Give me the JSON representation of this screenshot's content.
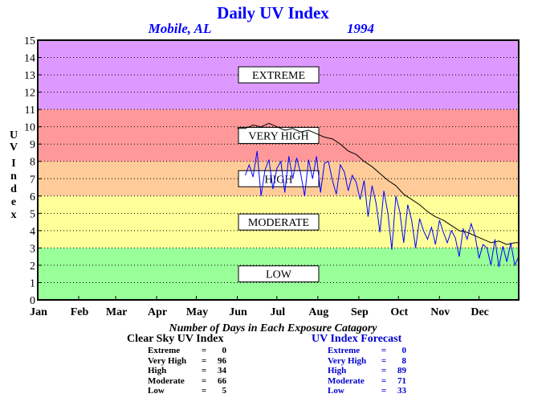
{
  "chart_data": {
    "type": "line",
    "title": "Daily UV Index",
    "location": "Mobile, AL",
    "year": "1994",
    "ylabel": "UV Index",
    "ylim": [
      0,
      15
    ],
    "yticks": [
      "0",
      "1",
      "2",
      "3",
      "4",
      "5",
      "6",
      "7",
      "8",
      "9",
      "10",
      "11",
      "12",
      "13",
      "14",
      "15"
    ],
    "months": [
      "Jan",
      "Feb",
      "Mar",
      "Apr",
      "May",
      "Jun",
      "Jul",
      "Aug",
      "Sep",
      "Oct",
      "Nov",
      "Dec"
    ],
    "xlim_day": [
      1,
      365
    ],
    "grid": true,
    "bands": [
      {
        "label": "LOW",
        "from": 0,
        "to": 3,
        "color": "#99ff99"
      },
      {
        "label": "MODERATE",
        "from": 3,
        "to": 6,
        "color": "#ffff99"
      },
      {
        "label": "HIGH",
        "from": 6,
        "to": 8,
        "color": "#ffcc99"
      },
      {
        "label": "VERY HIGH",
        "from": 8,
        "to": 11,
        "color": "#ff9999"
      },
      {
        "label": "EXTREME",
        "from": 11,
        "to": 15,
        "color": "#dd99ff"
      }
    ],
    "series": [
      {
        "name": "Clear Sky UV Index",
        "color": "#000000",
        "day": [
          152,
          158,
          164,
          170,
          176,
          182,
          188,
          194,
          200,
          206,
          212,
          218,
          224,
          230,
          236,
          242,
          248,
          254,
          260,
          266,
          272,
          278,
          284,
          290,
          296,
          302,
          308,
          314,
          320,
          326,
          332,
          338,
          344,
          350,
          356,
          362,
          365
        ],
        "uv": [
          9.9,
          9.9,
          10.1,
          10.0,
          10.2,
          10.0,
          9.8,
          9.9,
          9.7,
          9.8,
          9.6,
          9.4,
          9.3,
          9.0,
          8.6,
          8.4,
          8.0,
          7.7,
          7.3,
          6.9,
          6.6,
          6.1,
          5.8,
          5.5,
          5.1,
          4.8,
          4.6,
          4.3,
          4.0,
          3.9,
          3.7,
          3.5,
          3.3,
          3.4,
          3.2,
          3.3,
          3.3
        ]
      },
      {
        "name": "UV Index Forecast",
        "color": "#0000ff",
        "day": [
          158,
          161,
          164,
          167,
          170,
          173,
          176,
          179,
          182,
          185,
          188,
          191,
          194,
          197,
          200,
          203,
          206,
          209,
          212,
          215,
          218,
          221,
          224,
          227,
          230,
          233,
          236,
          239,
          242,
          245,
          248,
          251,
          254,
          257,
          260,
          263,
          266,
          269,
          272,
          275,
          278,
          281,
          284,
          287,
          290,
          293,
          296,
          299,
          302,
          305,
          308,
          311,
          314,
          317,
          320,
          323,
          326,
          329,
          332,
          335,
          338,
          341,
          344,
          347,
          350,
          353,
          356,
          359,
          362,
          365
        ],
        "uv": [
          7.2,
          7.8,
          7.1,
          8.6,
          6.0,
          7.5,
          8.1,
          6.4,
          7.6,
          8.0,
          6.2,
          8.3,
          7.0,
          8.2,
          7.3,
          6.0,
          8.1,
          7.0,
          8.3,
          6.2,
          7.9,
          8.0,
          6.9,
          6.1,
          7.8,
          7.4,
          6.3,
          7.2,
          6.8,
          5.8,
          6.9,
          4.8,
          6.6,
          5.6,
          3.9,
          6.3,
          5.0,
          2.9,
          6.0,
          5.1,
          3.3,
          5.5,
          4.6,
          3.0,
          4.7,
          4.0,
          3.5,
          4.2,
          3.2,
          4.6,
          3.9,
          3.3,
          4.0,
          3.6,
          2.5,
          4.1,
          3.5,
          4.4,
          3.7,
          2.4,
          3.2,
          3.0,
          2.0,
          3.5,
          1.9,
          3.1,
          2.2,
          3.3,
          2.0,
          2.5
        ]
      }
    ]
  },
  "footer": {
    "caption": "Number of Days in Each Exposure Catagory",
    "left": {
      "title": "Clear Sky UV Index",
      "rows": [
        {
          "label": "Extreme",
          "value": "0"
        },
        {
          "label": "Very High",
          "value": "96"
        },
        {
          "label": "High",
          "value": "34"
        },
        {
          "label": "Moderate",
          "value": "66"
        },
        {
          "label": "Low",
          "value": "5"
        }
      ]
    },
    "right": {
      "title": "UV Index Forecast",
      "rows": [
        {
          "label": "Extreme",
          "value": "0"
        },
        {
          "label": "Very High",
          "value": "8"
        },
        {
          "label": "High",
          "value": "89"
        },
        {
          "label": "Moderate",
          "value": "71"
        },
        {
          "label": "Low",
          "value": "33"
        }
      ]
    }
  }
}
